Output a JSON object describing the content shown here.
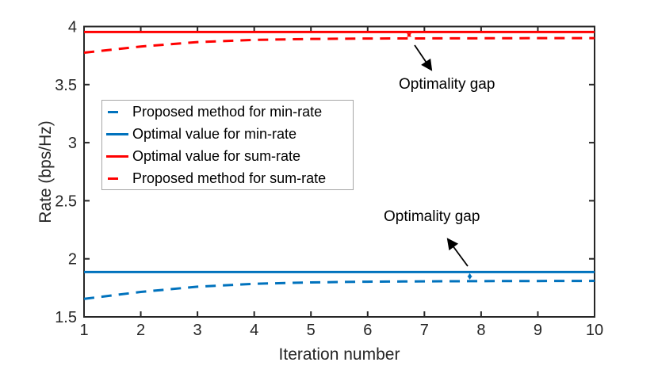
{
  "figure": {
    "background": "#ffffff"
  },
  "chart_data": {
    "type": "line",
    "title": "",
    "xlabel": "Iteration number",
    "ylabel": "Rate (bps/Hz)",
    "xlim": [
      1,
      10
    ],
    "ylim": [
      1.5,
      4
    ],
    "xticks": [
      1,
      2,
      3,
      4,
      5,
      6,
      7,
      8,
      9,
      10
    ],
    "xtick_labels": [
      "1",
      "2",
      "3",
      "4",
      "5",
      "6",
      "7",
      "8",
      "9",
      "10"
    ],
    "yticks": [
      1.5,
      2,
      2.5,
      3,
      3.5,
      4
    ],
    "ytick_labels": [
      "1.5",
      "2",
      "2.5",
      "3",
      "3.5",
      "4"
    ],
    "grid": false,
    "box": true,
    "axis_color": "#262626",
    "text_color": "#000000",
    "legend": {
      "position": "upper-left-inside",
      "border_color": "#a6a6a6",
      "background": "#ffffff"
    },
    "x": [
      1,
      2,
      3,
      4,
      5,
      6,
      7,
      8,
      9,
      10
    ],
    "series": [
      {
        "name": "Proposed method for min-rate",
        "color": "#0072bd",
        "line_style": "dashed",
        "line_width": 3,
        "values": [
          1.655,
          1.715,
          1.76,
          1.785,
          1.797,
          1.803,
          1.806,
          1.808,
          1.809,
          1.81
        ]
      },
      {
        "name": "Optimal value for min-rate",
        "color": "#0072bd",
        "line_style": "solid",
        "line_width": 3,
        "values": [
          1.886,
          1.886,
          1.886,
          1.886,
          1.886,
          1.886,
          1.886,
          1.886,
          1.886,
          1.886
        ]
      },
      {
        "name": "Optimal value for sum-rate",
        "color": "#ff0000",
        "line_style": "solid",
        "line_width": 3,
        "values": [
          3.953,
          3.953,
          3.953,
          3.953,
          3.953,
          3.953,
          3.953,
          3.953,
          3.953,
          3.953
        ]
      },
      {
        "name": "Proposed method for sum-rate",
        "color": "#ff0000",
        "line_style": "dashed",
        "line_width": 3,
        "values": [
          3.775,
          3.828,
          3.866,
          3.885,
          3.893,
          3.897,
          3.898,
          3.899,
          3.9,
          3.9
        ]
      }
    ],
    "annotations": [
      {
        "label": "Optimality gap",
        "gap_x": 6.73,
        "gap_from": 3.9,
        "gap_to": 3.953,
        "marker_color": "#ff0000"
      },
      {
        "label": "Optimality gap",
        "gap_x": 7.8,
        "gap_from": 1.81,
        "gap_to": 1.886,
        "marker_color": "#0072bd"
      }
    ]
  }
}
